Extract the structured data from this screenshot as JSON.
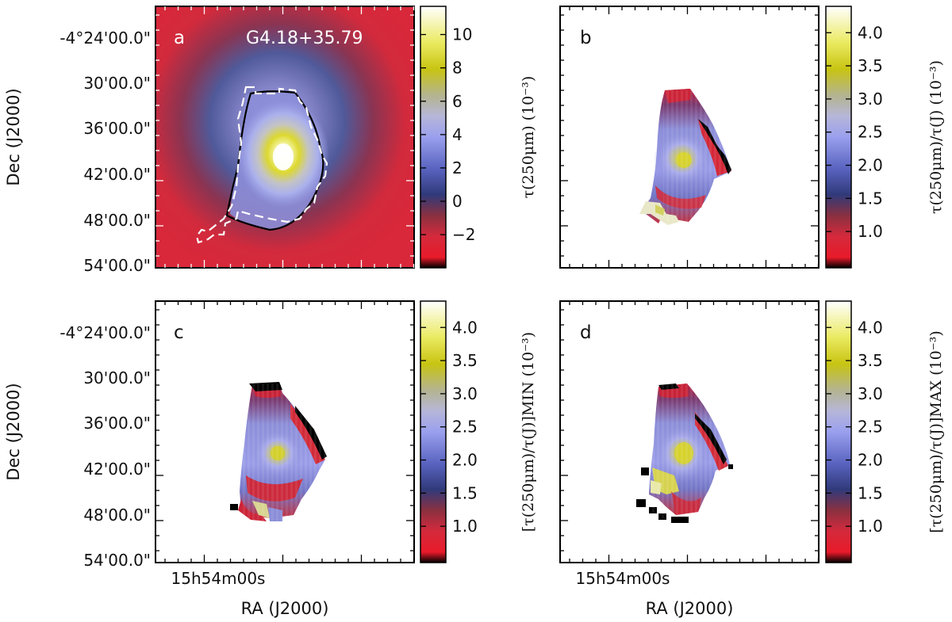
{
  "chart_data": [
    {
      "panel": "a",
      "type": "heatmap",
      "title": "G4.18+35.79",
      "ylabel": "Dec (J2000)",
      "xlabel": "",
      "yticks": [
        "-4°24'00.0\"",
        "30'00.0\"",
        "36'00.0\"",
        "42'00.0\"",
        "48'00.0\"",
        "54'00.0\""
      ],
      "xticks": [],
      "colorbar": {
        "label": "τ(250μm) (10⁻³)",
        "ticks": [
          10,
          8,
          6,
          4,
          2,
          0,
          -2
        ],
        "range": [
          -3.8,
          11.5
        ]
      },
      "contours": [
        "solid black outline of region",
        "dashed white outline of region"
      ]
    },
    {
      "panel": "b",
      "type": "heatmap",
      "title": "",
      "ylabel": "τ(250μm) (10⁻³)",
      "xlabel": "",
      "yticks": [],
      "xticks": [],
      "colorbar": {
        "label": "τ(250μm)/τ(J) (10⁻³)",
        "ticks": [
          "4.0",
          "3.5",
          "3.0",
          "2.5",
          "2.0",
          "1.5",
          "1.0"
        ],
        "range": [
          0.5,
          4.35
        ]
      }
    },
    {
      "panel": "c",
      "type": "heatmap",
      "title": "",
      "ylabel": "Dec (J2000)",
      "xlabel": "RA (J2000)",
      "yticks": [
        "-4°24'00.0\"",
        "30'00.0\"",
        "36'00.0\"",
        "42'00.0\"",
        "48'00.0\"",
        "54'00.0\""
      ],
      "xticks": [
        "15h54m00s"
      ],
      "colorbar": {
        "label": "[τ(250μm)/τ(J)]MIN (10⁻³)",
        "ticks": [
          "4.0",
          "3.5",
          "3.0",
          "2.5",
          "2.0",
          "1.5",
          "1.0"
        ],
        "range": [
          0.5,
          4.35
        ]
      }
    },
    {
      "panel": "d",
      "type": "heatmap",
      "title": "",
      "ylabel": "",
      "xlabel": "RA (J2000)",
      "yticks": [],
      "xticks": [
        "15h54m00s"
      ],
      "colorbar": {
        "label": "[τ(250μm)/τ(J)]MAX (10⁻³)",
        "ticks": [
          "4.0",
          "3.5",
          "3.0",
          "2.5",
          "2.0",
          "1.5",
          "1.0"
        ],
        "range": [
          0.5,
          4.35
        ]
      }
    }
  ],
  "colors": {
    "map_background": "#d8283a",
    "mask_background": "#ffffff",
    "outline_black": "#000000",
    "outline_white": "#ffffff"
  }
}
